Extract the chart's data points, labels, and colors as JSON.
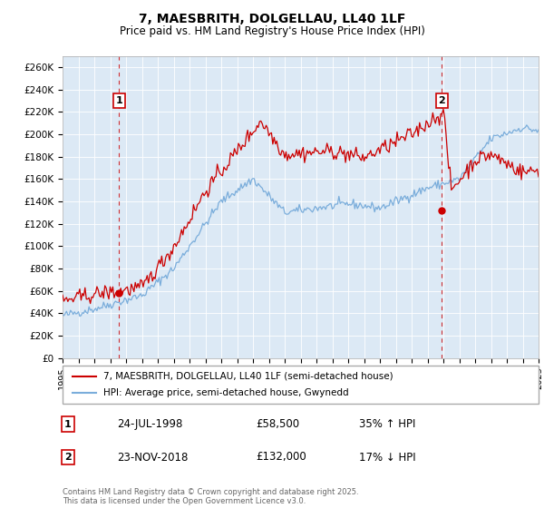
{
  "title": "7, MAESBRITH, DOLGELLAU, LL40 1LF",
  "subtitle": "Price paid vs. HM Land Registry's House Price Index (HPI)",
  "ylabel_ticks": [
    "£0",
    "£20K",
    "£40K",
    "£60K",
    "£80K",
    "£100K",
    "£120K",
    "£140K",
    "£160K",
    "£180K",
    "£200K",
    "£220K",
    "£240K",
    "£260K"
  ],
  "ylim": [
    0,
    270000
  ],
  "ytick_values": [
    0,
    20000,
    40000,
    60000,
    80000,
    100000,
    120000,
    140000,
    160000,
    180000,
    200000,
    220000,
    240000,
    260000
  ],
  "xmin": 1995,
  "xmax": 2025,
  "sale1_x": 1998.56,
  "sale1_y": 58500,
  "sale2_x": 2018.9,
  "sale2_y": 132000,
  "red_color": "#cc0000",
  "blue_color": "#7aaddb",
  "plot_bg_color": "#dce9f5",
  "legend_label_red": "7, MAESBRITH, DOLGELLAU, LL40 1LF (semi-detached house)",
  "legend_label_blue": "HPI: Average price, semi-detached house, Gwynedd",
  "table_row1_num": "1",
  "table_row1_date": "24-JUL-1998",
  "table_row1_price": "£58,500",
  "table_row1_hpi": "35% ↑ HPI",
  "table_row2_num": "2",
  "table_row2_date": "23-NOV-2018",
  "table_row2_price": "£132,000",
  "table_row2_hpi": "17% ↓ HPI",
  "footer": "Contains HM Land Registry data © Crown copyright and database right 2025.\nThis data is licensed under the Open Government Licence v3.0.",
  "bg_color": "#ffffff",
  "grid_color": "#ffffff",
  "dashed_vline_color": "#cc0000"
}
